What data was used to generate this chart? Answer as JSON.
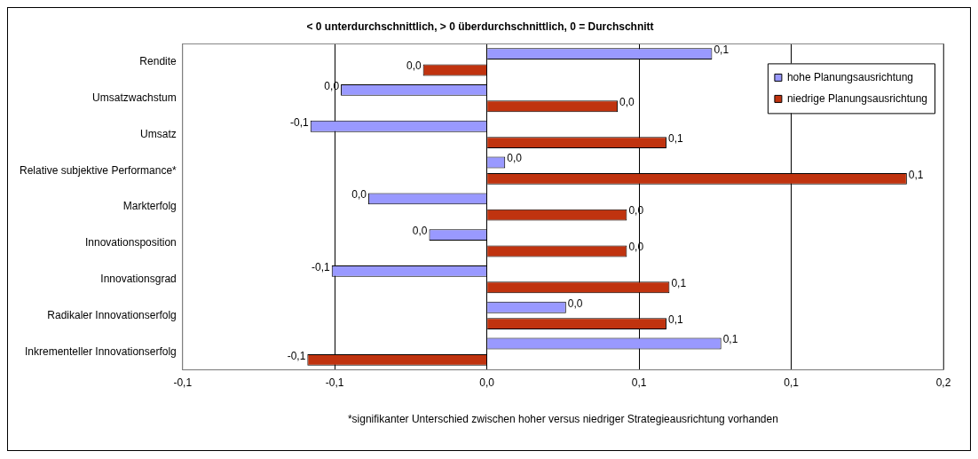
{
  "chart_data": {
    "type": "bar",
    "orientation": "horizontal",
    "title": "< 0 unterdurchschnittlich, > 0 überdurchschnittlich, 0 = Durchschnitt",
    "categories": [
      "Rendite",
      "Umsatzwachstum",
      "Umsatz",
      "Relative subjektive Performance*",
      "Markterfolg",
      "Innovationsposition",
      "Innovationsgrad",
      "Radikaler Innovationserfolg",
      "Inkrementeller Innovationserfolg"
    ],
    "series": [
      {
        "name": "hohe Planungsausrichtung",
        "color": "#9999ff",
        "values": [
          0.074,
          -0.048,
          -0.058,
          0.006,
          -0.039,
          -0.019,
          -0.051,
          0.026,
          0.077
        ],
        "value_labels": [
          "0,1",
          "0,0",
          "-0,1",
          "0,0",
          "0,0",
          "0,0",
          "-0,1",
          "0,0",
          "0,1"
        ]
      },
      {
        "name": "niedrige Planungsausrichtung",
        "color": "#c0330f",
        "values": [
          -0.021,
          0.043,
          0.059,
          0.138,
          0.046,
          0.046,
          0.06,
          0.059,
          -0.059
        ],
        "value_labels": [
          "0,0",
          "0,0",
          "0,1",
          "0,1",
          "0,0",
          "0,0",
          "0,1",
          "0,1",
          "-0,1"
        ]
      }
    ],
    "xlim": [
      -0.1,
      0.15
    ],
    "xticks": [
      {
        "value": -0.1,
        "label": "-0,1"
      },
      {
        "value": -0.05,
        "label": "-0,1"
      },
      {
        "value": 0,
        "label": "0,0"
      },
      {
        "value": 0.05,
        "label": "0,1"
      },
      {
        "value": 0.1,
        "label": "0,1"
      },
      {
        "value": 0.15,
        "label": "0,2"
      }
    ],
    "grid": "x",
    "legend": "top right",
    "annotations": [
      "*signifikanter Unterschied zwischen hoher versus niedriger Strategieausrichtung vorhanden"
    ]
  }
}
